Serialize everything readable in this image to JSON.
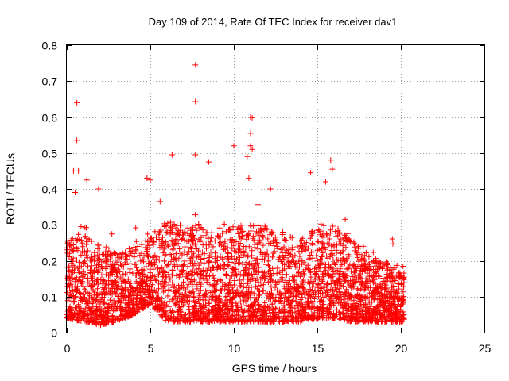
{
  "chart_data": {
    "type": "scatter",
    "title": "Day 109 of 2014, Rate Of TEC Index for receiver dav1",
    "xlabel": "GPS time / hours",
    "ylabel": "ROTI / TECUs",
    "xlim": [
      0,
      25
    ],
    "ylim": [
      0,
      0.8
    ],
    "xticks": [
      0,
      5,
      10,
      15,
      20,
      25
    ],
    "yticks": [
      0,
      0.1,
      0.2,
      0.3,
      0.4,
      0.5,
      0.6,
      0.7,
      0.8
    ],
    "xtick_labels": [
      "0",
      "5",
      "10",
      "15",
      "20",
      "25"
    ],
    "ytick_labels": [
      "0",
      "0.1",
      "0.2",
      "0.3",
      "0.4",
      "0.5",
      "0.6",
      "0.7",
      "0.8"
    ],
    "grid": true,
    "marker": "plus",
    "color": "#ff0000",
    "x_data_range": [
      0,
      20.2
    ],
    "notable_points": [
      {
        "x": 0.6,
        "y": 0.64
      },
      {
        "x": 0.6,
        "y": 0.535
      },
      {
        "x": 0.4,
        "y": 0.45
      },
      {
        "x": 0.7,
        "y": 0.45
      },
      {
        "x": 1.2,
        "y": 0.425
      },
      {
        "x": 0.5,
        "y": 0.39
      },
      {
        "x": 1.9,
        "y": 0.4
      },
      {
        "x": 4.8,
        "y": 0.43
      },
      {
        "x": 5.0,
        "y": 0.425
      },
      {
        "x": 6.3,
        "y": 0.495
      },
      {
        "x": 7.7,
        "y": 0.745
      },
      {
        "x": 7.7,
        "y": 0.643
      },
      {
        "x": 7.7,
        "y": 0.495
      },
      {
        "x": 8.5,
        "y": 0.475
      },
      {
        "x": 10.0,
        "y": 0.52
      },
      {
        "x": 10.8,
        "y": 0.49
      },
      {
        "x": 10.9,
        "y": 0.43
      },
      {
        "x": 11.0,
        "y": 0.6
      },
      {
        "x": 11.1,
        "y": 0.598
      },
      {
        "x": 11.0,
        "y": 0.555
      },
      {
        "x": 11.0,
        "y": 0.52
      },
      {
        "x": 11.1,
        "y": 0.51
      },
      {
        "x": 12.2,
        "y": 0.4
      },
      {
        "x": 14.6,
        "y": 0.445
      },
      {
        "x": 15.8,
        "y": 0.48
      },
      {
        "x": 15.9,
        "y": 0.455
      },
      {
        "x": 15.5,
        "y": 0.42
      }
    ],
    "density_profile": [
      {
        "x": 0.0,
        "lo": 0.04,
        "hi": 0.26
      },
      {
        "x": 1.0,
        "lo": 0.03,
        "hi": 0.28
      },
      {
        "x": 2.0,
        "lo": 0.02,
        "hi": 0.25
      },
      {
        "x": 3.0,
        "lo": 0.03,
        "hi": 0.22
      },
      {
        "x": 4.0,
        "lo": 0.05,
        "hi": 0.24
      },
      {
        "x": 5.0,
        "lo": 0.08,
        "hi": 0.26
      },
      {
        "x": 6.0,
        "lo": 0.03,
        "hi": 0.32
      },
      {
        "x": 7.0,
        "lo": 0.03,
        "hi": 0.3
      },
      {
        "x": 8.0,
        "lo": 0.03,
        "hi": 0.3
      },
      {
        "x": 9.0,
        "lo": 0.03,
        "hi": 0.27
      },
      {
        "x": 10.0,
        "lo": 0.03,
        "hi": 0.3
      },
      {
        "x": 11.0,
        "lo": 0.03,
        "hi": 0.3
      },
      {
        "x": 12.0,
        "lo": 0.03,
        "hi": 0.3
      },
      {
        "x": 13.0,
        "lo": 0.03,
        "hi": 0.28
      },
      {
        "x": 14.0,
        "lo": 0.03,
        "hi": 0.26
      },
      {
        "x": 15.0,
        "lo": 0.04,
        "hi": 0.3
      },
      {
        "x": 16.0,
        "lo": 0.04,
        "hi": 0.3
      },
      {
        "x": 17.0,
        "lo": 0.03,
        "hi": 0.26
      },
      {
        "x": 18.0,
        "lo": 0.03,
        "hi": 0.22
      },
      {
        "x": 19.0,
        "lo": 0.03,
        "hi": 0.2
      },
      {
        "x": 20.2,
        "lo": 0.03,
        "hi": 0.18
      }
    ]
  }
}
